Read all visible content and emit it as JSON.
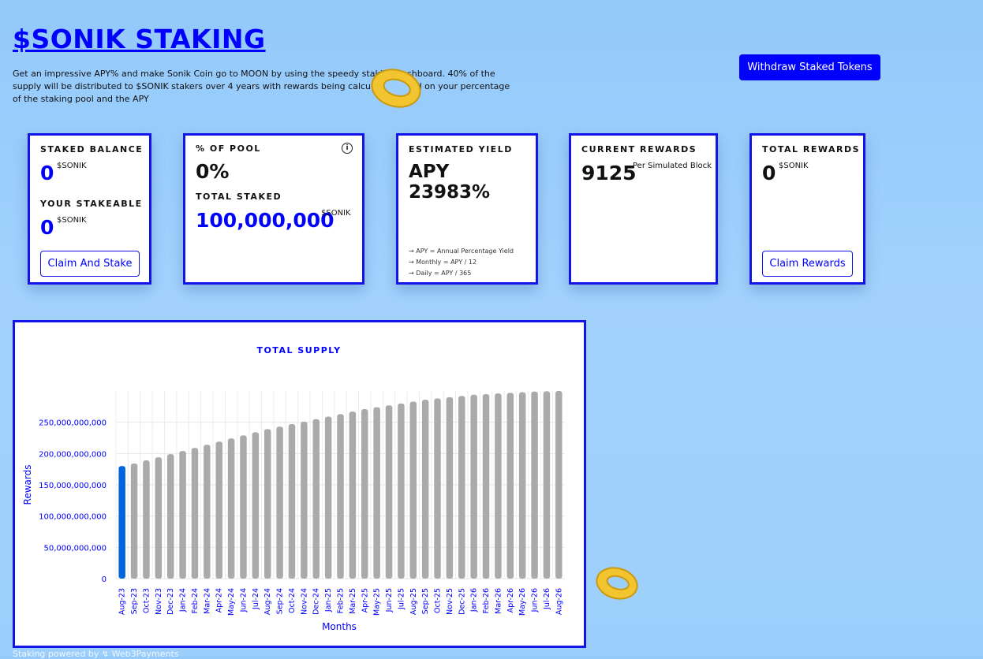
{
  "header": {
    "title": "$SONIK STAKING",
    "description": "Get an impressive APY% and make Sonik Coin go to MOON by using the speedy staking dashboard. 40% of the supply will be distributed to $SONIK stakers over 4 years with rewards being calculated based on your percentage of the staking pool and the APY",
    "withdraw_label": "Withdraw Staked Tokens"
  },
  "cards": {
    "balance": {
      "staked_label": "STAKED BALANCE",
      "staked_value": "0",
      "staked_unit": "$SONIK",
      "stakeable_label": "YOUR STAKEABLE",
      "stakeable_value": "0",
      "stakeable_unit": "$SONIK",
      "button_label": "Claim And Stake"
    },
    "pool": {
      "label": "% OF POOL",
      "value": "0%",
      "total_label": "TOTAL STAKED",
      "total_value": "100,000,000",
      "total_unit": "$SONIK",
      "info_icon": "info-icon"
    },
    "yield": {
      "label": "ESTIMATED YIELD",
      "value": "APY 23983%",
      "notes": [
        "→ APY = Annual Percentage Yield",
        "→ Monthly = APY / 12",
        "→ Daily = APY / 365"
      ]
    },
    "current": {
      "label": "CURRENT REWARDS",
      "value": "9125",
      "unit": "Per Simulated Block"
    },
    "total": {
      "label": "TOTAL REWARDS",
      "value": "0",
      "unit": "$SONIK",
      "button_label": "Claim Rewards"
    }
  },
  "chart_data": {
    "type": "bar",
    "title": "TOTAL SUPPLY",
    "xlabel": "Months",
    "ylabel": "Rewards",
    "ylim": [
      0,
      300000000000
    ],
    "yticks": [
      0,
      50000000000,
      100000000000,
      150000000000,
      200000000000,
      250000000000
    ],
    "ytick_labels": [
      "0",
      "50,000,000,000",
      "100,000,000,000",
      "150,000,000,000",
      "200,000,000,000",
      "250,000,000,000"
    ],
    "grid": true,
    "highlight_index": 0,
    "colors": {
      "highlight": "#0066dd",
      "bar": "#aaaaaa",
      "axis_text": "#0000ff"
    },
    "categories": [
      "Aug-23",
      "Sep-23",
      "Oct-23",
      "Nov-23",
      "Dec-23",
      "Jan-24",
      "Feb-24",
      "Mar-24",
      "Apr-24",
      "May-24",
      "Jun-24",
      "Jul-24",
      "Aug-24",
      "Sep-24",
      "Oct-24",
      "Nov-24",
      "Dec-24",
      "Jan-25",
      "Feb-25",
      "Mar-25",
      "Apr-25",
      "May-25",
      "Jun-25",
      "Jul-25",
      "Aug-25",
      "Sep-25",
      "Oct-25",
      "Nov-25",
      "Dec-25",
      "Jan-26",
      "Feb-26",
      "Mar-26",
      "Apr-26",
      "May-26",
      "Jun-26",
      "Jul-26",
      "Aug-26"
    ],
    "values": [
      180000000000,
      184000000000,
      189000000000,
      194000000000,
      199000000000,
      204000000000,
      209000000000,
      214000000000,
      219000000000,
      224000000000,
      229000000000,
      234000000000,
      239000000000,
      243000000000,
      247000000000,
      251000000000,
      255000000000,
      259000000000,
      263000000000,
      267000000000,
      271000000000,
      274000000000,
      277000000000,
      280000000000,
      283000000000,
      286000000000,
      288000000000,
      290000000000,
      292000000000,
      294000000000,
      295000000000,
      296000000000,
      297000000000,
      298000000000,
      299000000000,
      299500000000,
      300000000000
    ]
  },
  "footer": {
    "text": "Staking powered by ↯ Web3Payments"
  },
  "decor": {
    "coin_color": "#f2c530"
  }
}
